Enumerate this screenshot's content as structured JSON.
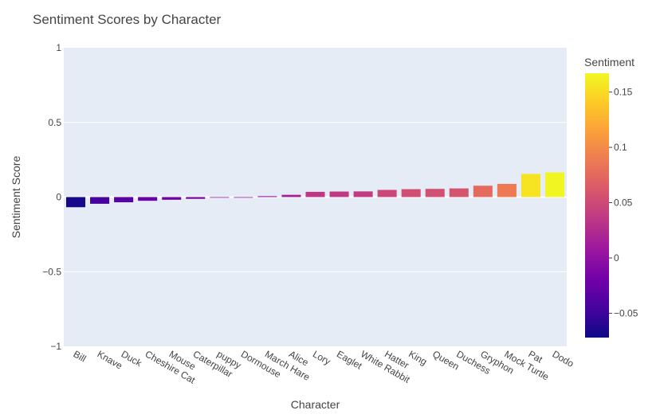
{
  "chart_data": {
    "type": "bar",
    "title": "Sentiment Scores by Character",
    "xlabel": "Character",
    "ylabel": "Sentiment Score",
    "ylim": [
      -1,
      1
    ],
    "yticks": [
      1,
      0.5,
      0,
      -0.5,
      -1
    ],
    "ytick_labels": [
      "1",
      "0.5",
      "0",
      "−0.5",
      "−1"
    ],
    "grid": true,
    "categories": [
      "Bill",
      "Knave",
      "Duck",
      "Cheshire Cat",
      "Mouse",
      "Caterpillar",
      "puppy",
      "Dormouse",
      "March Hare",
      "Alice",
      "Lory",
      "Eaglet",
      "White Rabbit",
      "Hatter",
      "King",
      "Queen",
      "Duchess",
      "Gryphon",
      "Mock Turtle",
      "Pat",
      "Dodo"
    ],
    "values": [
      -0.068,
      -0.045,
      -0.035,
      -0.025,
      -0.018,
      -0.012,
      -0.002,
      -0.001,
      0.006,
      0.015,
      0.035,
      0.037,
      0.038,
      0.048,
      0.053,
      0.055,
      0.058,
      0.076,
      0.088,
      0.155,
      0.165
    ],
    "colorbar": {
      "title": "Sentiment",
      "ticks": [
        0.15,
        0.1,
        0.05,
        0,
        -0.05
      ],
      "tick_labels": [
        "0.15",
        "0.1",
        "0.05",
        "0",
        "−0.05"
      ],
      "range": [
        -0.072,
        0.167
      ],
      "colorscale": [
        "#0d0887",
        "#46039f",
        "#7201a8",
        "#9c179e",
        "#bd3786",
        "#d8576b",
        "#ed7953",
        "#fb9f3a",
        "#fdca26",
        "#f0f921"
      ]
    },
    "colors": {
      "plot_bg": "#e5ecf6",
      "grid": "#ffffff",
      "text": "#444444"
    }
  }
}
